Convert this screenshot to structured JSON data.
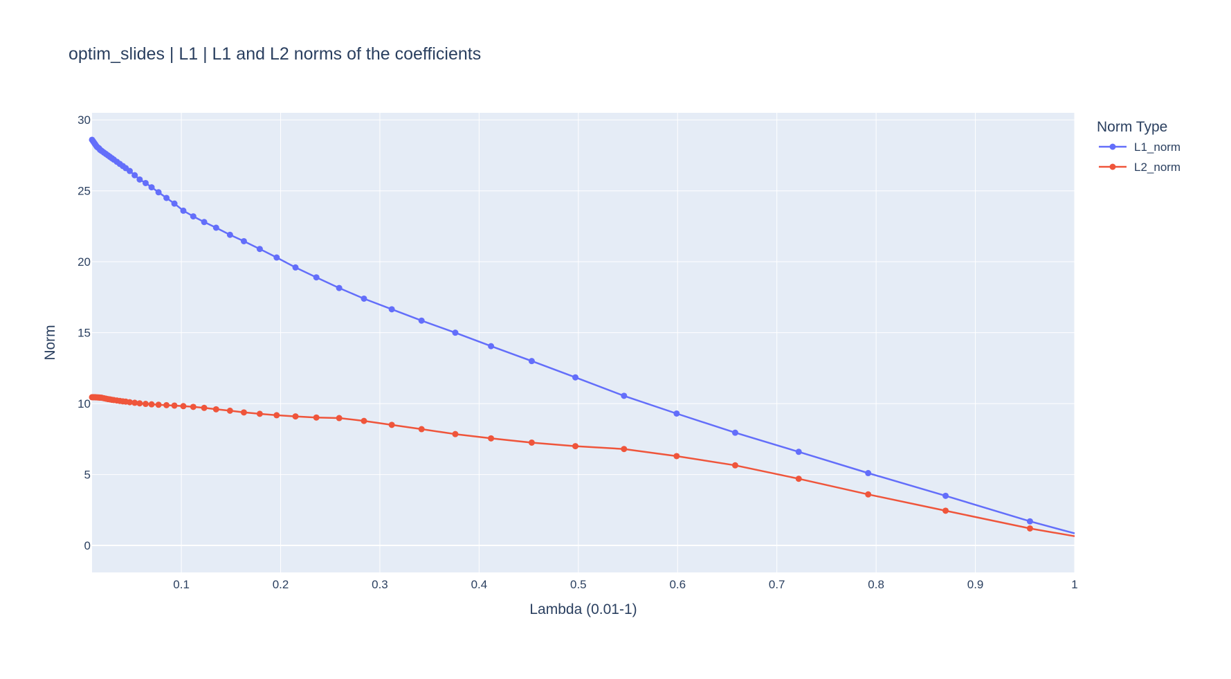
{
  "chart_data": {
    "type": "line",
    "title": "optim_slides | L1 | L1 and L2 norms of the coefficients",
    "xlabel": "Lambda (0.01-1)",
    "ylabel": "Norm",
    "xlim": [
      0.01,
      1
    ],
    "ylim": [
      -1.9,
      30.5
    ],
    "xticks": [
      0.1,
      0.2,
      0.3,
      0.4,
      0.5,
      0.6,
      0.7,
      0.8,
      0.9,
      1
    ],
    "xtick_labels": [
      "0.1",
      "0.2",
      "0.3",
      "0.4",
      "0.5",
      "0.6",
      "0.7",
      "0.8",
      "0.9",
      "1"
    ],
    "yticks": [
      0,
      5,
      10,
      15,
      20,
      25,
      30
    ],
    "ytick_labels": [
      "0",
      "5",
      "10",
      "15",
      "20",
      "25",
      "30"
    ],
    "grid": true,
    "legend": {
      "title": "Norm Type",
      "position": "top-right"
    },
    "x": [
      0.01,
      0.011,
      0.012,
      0.013,
      0.014,
      0.015,
      0.016,
      0.017,
      0.018,
      0.019,
      0.02,
      0.022,
      0.024,
      0.026,
      0.028,
      0.03,
      0.032,
      0.035,
      0.038,
      0.041,
      0.044,
      0.048,
      0.053,
      0.058,
      0.064,
      0.07,
      0.077,
      0.085,
      0.093,
      0.102,
      0.112,
      0.123,
      0.135,
      0.149,
      0.163,
      0.179,
      0.196,
      0.215,
      0.236,
      0.259,
      0.284,
      0.312,
      0.342,
      0.376,
      0.412,
      0.453,
      0.497,
      0.546,
      0.599,
      0.658,
      0.722,
      0.792,
      0.87,
      0.955,
      1.0
    ],
    "series": [
      {
        "name": "L1_norm",
        "color": "#636efa",
        "values": [
          28.6,
          28.5,
          28.4,
          28.3,
          28.2,
          28.1,
          28.05,
          28.0,
          27.9,
          27.85,
          27.8,
          27.7,
          27.6,
          27.5,
          27.4,
          27.3,
          27.2,
          27.05,
          26.9,
          26.75,
          26.6,
          26.4,
          26.1,
          25.8,
          25.55,
          25.25,
          24.9,
          24.5,
          24.1,
          23.6,
          23.2,
          22.8,
          22.4,
          21.9,
          21.45,
          20.9,
          20.3,
          19.6,
          18.9,
          18.15,
          17.4,
          16.65,
          15.85,
          15.0,
          14.05,
          13.0,
          11.85,
          10.55,
          9.3,
          7.95,
          6.6,
          5.1,
          3.5,
          1.7,
          0.85
        ]
      },
      {
        "name": "L2_norm",
        "color": "#ef553b",
        "values": [
          10.45,
          10.45,
          10.45,
          10.45,
          10.44,
          10.44,
          10.43,
          10.43,
          10.42,
          10.42,
          10.41,
          10.38,
          10.35,
          10.32,
          10.3,
          10.27,
          10.25,
          10.22,
          10.19,
          10.16,
          10.14,
          10.1,
          10.06,
          10.02,
          9.98,
          9.95,
          9.92,
          9.89,
          9.86,
          9.82,
          9.77,
          9.7,
          9.6,
          9.5,
          9.38,
          9.28,
          9.18,
          9.1,
          9.02,
          8.98,
          8.78,
          8.5,
          8.2,
          7.85,
          7.55,
          7.25,
          7.0,
          6.8,
          6.3,
          5.65,
          4.7,
          3.6,
          2.45,
          1.2,
          0.65
        ]
      }
    ]
  }
}
